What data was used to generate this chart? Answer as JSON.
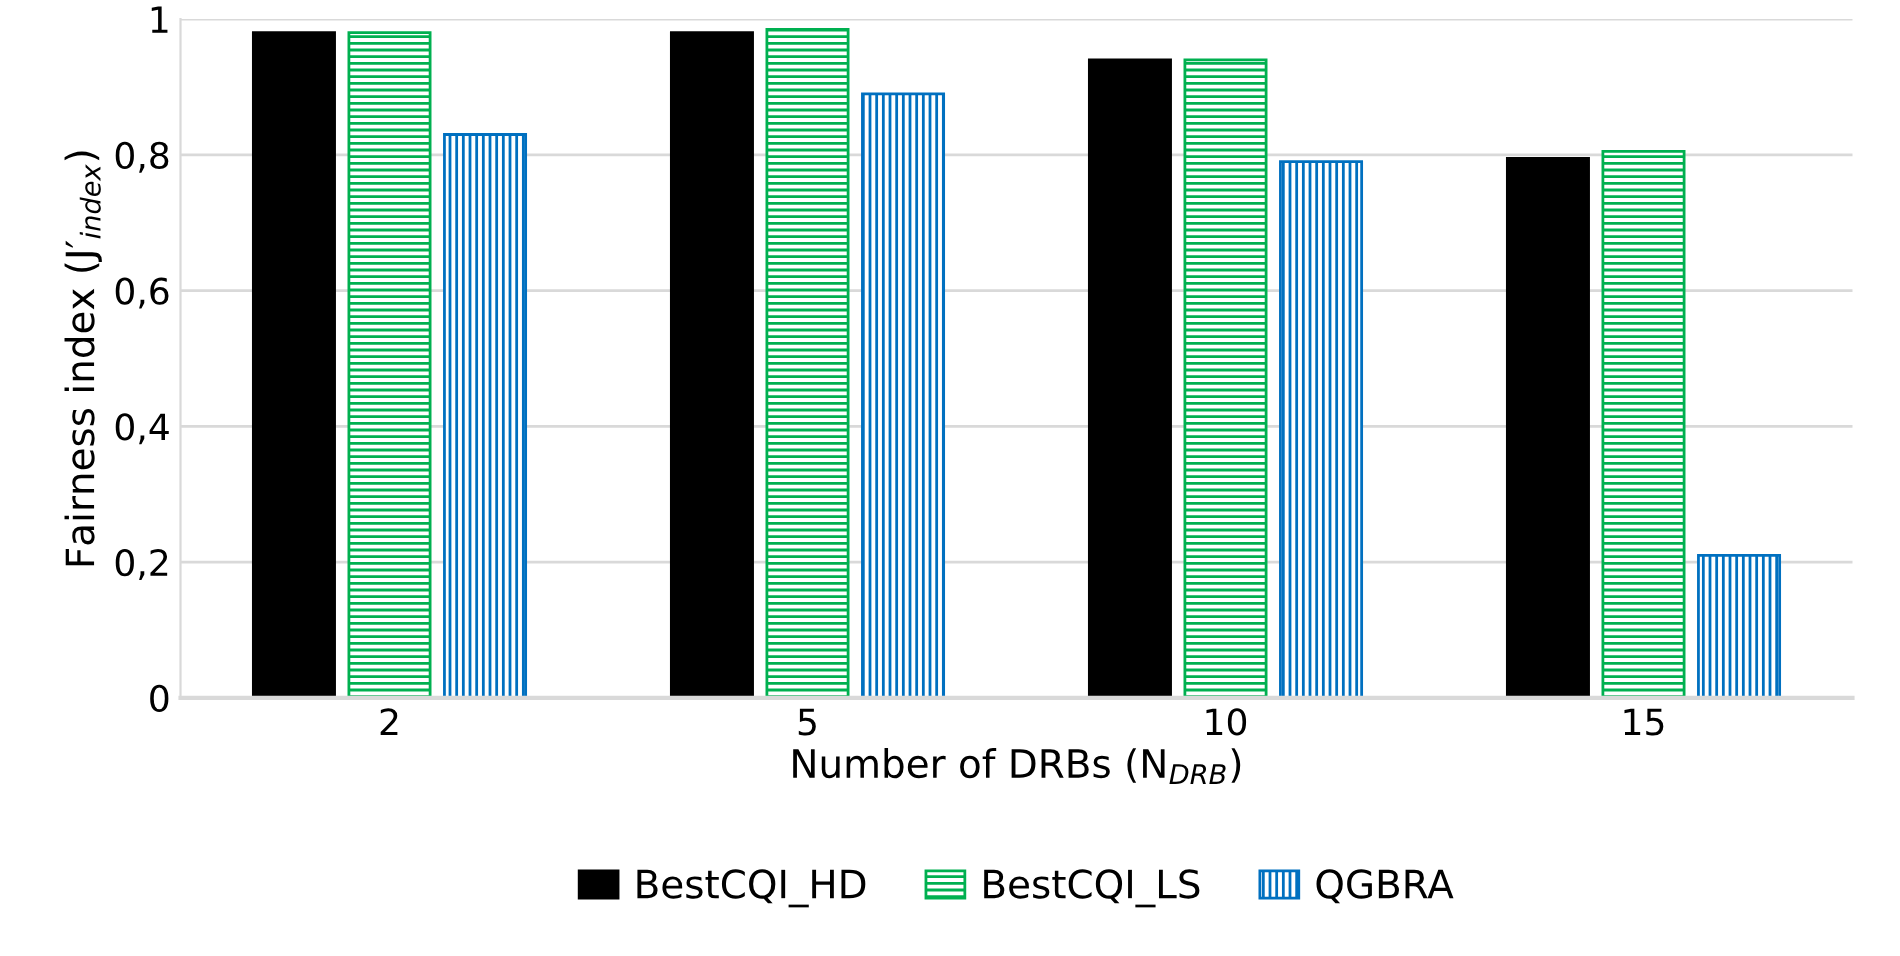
{
  "chart_data": {
    "type": "bar",
    "xlabel": "Number of DRBs (N$_{DRB}$)",
    "ylabel": "Fairness index (J′$_{index}$)",
    "categories": [
      "2",
      "5",
      "10",
      "15"
    ],
    "series": [
      {
        "name": "BestCQI_HD",
        "color": "#000000",
        "values": [
          0.98,
          0.98,
          0.94,
          0.795
        ]
      },
      {
        "name": "BestCQI_LS",
        "color": "#00b050",
        "values": [
          0.98,
          0.985,
          0.94,
          0.805
        ]
      },
      {
        "name": "QGBRA",
        "color": "#0070c0",
        "values": [
          0.83,
          0.89,
          0.79,
          0.21
        ]
      }
    ],
    "ylim": [
      0,
      1
    ],
    "yticks": [
      {
        "value": 0,
        "label": "0"
      },
      {
        "value": 0.2,
        "label": "0,2"
      },
      {
        "value": 0.4,
        "label": "0,4"
      },
      {
        "value": 0.6,
        "label": "0,6"
      },
      {
        "value": 0.8,
        "label": "0,8"
      },
      {
        "value": 1,
        "label": "1"
      }
    ],
    "grid": "y",
    "legend": "bottom"
  }
}
